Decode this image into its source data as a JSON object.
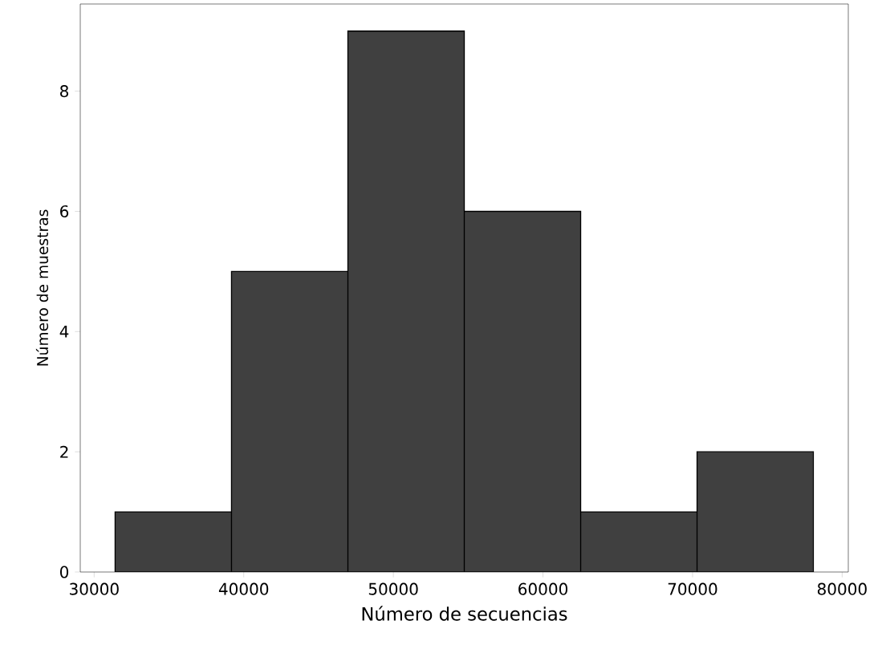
{
  "chart_data": {
    "type": "histogram",
    "xlabel": "Número de secuencias",
    "ylabel": "Número de muestras",
    "bins": [
      31400,
      39180,
      46960,
      54740,
      62520,
      70300,
      78080
    ],
    "values": [
      1,
      5,
      9,
      6,
      1,
      2
    ],
    "color": "#404040",
    "xlim": [
      29070,
      80410
    ],
    "ylim": [
      0,
      9.45
    ],
    "xticks": [
      30000,
      40000,
      50000,
      60000,
      70000,
      80000
    ],
    "yticks": [
      0,
      2,
      4,
      6,
      8
    ]
  }
}
